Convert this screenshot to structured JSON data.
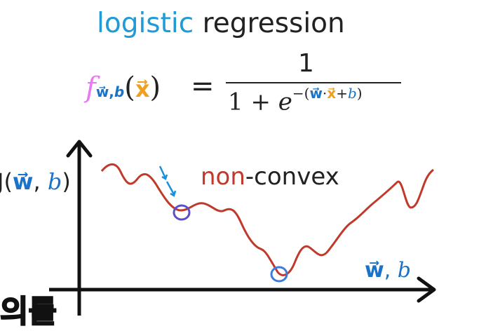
{
  "title": {
    "part1": "logistic",
    "part2": "regression"
  },
  "formula": {
    "lhs_f": "f",
    "lhs_sub": "w,b",
    "lhs_x": "x",
    "equals": "=",
    "numerator": "1",
    "denominator_prefix": "1 + ",
    "denominator_e": "e",
    "exponent": "−(w·x+b)"
  },
  "graph": {
    "y_label": "J(w, b)",
    "x_label": "w, b",
    "annotation_part1": "non",
    "annotation_part2": "-convex",
    "colors": {
      "curve": "#c0392b",
      "circle": "#5b4fc9",
      "arrow": "#1a8fe0",
      "axis": "#111111"
    }
  },
  "subtitle_fragment": "의를"
}
